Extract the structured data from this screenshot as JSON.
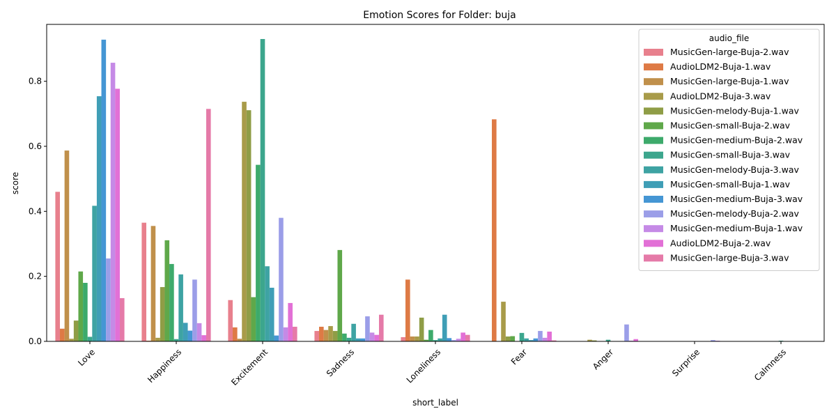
{
  "chart_data": {
    "type": "bar",
    "title": "Emotion Scores for Folder: buja",
    "xlabel": "short_label",
    "ylabel": "score",
    "ylim": [
      0,
      0.975
    ],
    "yticks": [
      "0.0",
      "0.2",
      "0.4",
      "0.6",
      "0.8"
    ],
    "ytick_values": [
      0,
      0.2,
      0.4,
      0.6,
      0.8
    ],
    "grid": false,
    "legend_placement": "top-right",
    "legend_title": "audio_file",
    "categories": [
      "Love",
      "Happiness",
      "Excitement",
      "Sadness",
      "Loneliness",
      "Fear",
      "Anger",
      "Surprise",
      "Calmness"
    ],
    "series": [
      {
        "name": "MusicGen-large-Buja-2.wav",
        "color": "#e8808d",
        "values": [
          0.46,
          0.365,
          0.127,
          0.032,
          0.013,
          0.001,
          0.001,
          0.0,
          0.0
        ]
      },
      {
        "name": "AudioLDM2-Buja-1.wav",
        "color": "#de7a45",
        "values": [
          0.039,
          0.002,
          0.043,
          0.045,
          0.19,
          0.683,
          0.0,
          0.0,
          0.0
        ]
      },
      {
        "name": "MusicGen-large-Buja-1.wav",
        "color": "#c0904b",
        "values": [
          0.587,
          0.355,
          0.008,
          0.035,
          0.015,
          0.0,
          0.0,
          0.0,
          0.0
        ]
      },
      {
        "name": "AudioLDM2-Buja-3.wav",
        "color": "#a89b49",
        "values": [
          0.008,
          0.011,
          0.737,
          0.047,
          0.015,
          0.122,
          0.005,
          0.0,
          0.0
        ]
      },
      {
        "name": "MusicGen-melody-Buja-1.wav",
        "color": "#8f9d46",
        "values": [
          0.064,
          0.167,
          0.711,
          0.032,
          0.073,
          0.015,
          0.003,
          0.0,
          0.0
        ]
      },
      {
        "name": "MusicGen-small-Buja-2.wav",
        "color": "#5fa84a",
        "values": [
          0.215,
          0.311,
          0.136,
          0.281,
          0.005,
          0.016,
          0.001,
          0.0,
          0.0
        ]
      },
      {
        "name": "MusicGen-medium-Buja-2.wav",
        "color": "#3daa6b",
        "values": [
          0.18,
          0.238,
          0.543,
          0.024,
          0.035,
          0.001,
          0.001,
          0.0,
          0.0
        ]
      },
      {
        "name": "MusicGen-small-Buja-3.wav",
        "color": "#3ca68d",
        "values": [
          0.014,
          0.007,
          0.93,
          0.011,
          0.004,
          0.026,
          0.005,
          0.0,
          0.002
        ]
      },
      {
        "name": "MusicGen-melody-Buja-3.wav",
        "color": "#3ea3a3",
        "values": [
          0.417,
          0.206,
          0.231,
          0.054,
          0.009,
          0.009,
          0.0,
          0.0,
          0.0
        ]
      },
      {
        "name": "MusicGen-small-Buja-1.wav",
        "color": "#3f9eb6",
        "values": [
          0.754,
          0.057,
          0.165,
          0.009,
          0.082,
          0.004,
          0.0,
          0.0,
          0.0
        ]
      },
      {
        "name": "MusicGen-medium-Buja-3.wav",
        "color": "#4596d4",
        "values": [
          0.928,
          0.033,
          0.018,
          0.009,
          0.01,
          0.009,
          0.0,
          0.0,
          0.0
        ]
      },
      {
        "name": "MusicGen-melody-Buja-2.wav",
        "color": "#9b9ee8",
        "values": [
          0.255,
          0.19,
          0.38,
          0.077,
          0.004,
          0.032,
          0.052,
          0.004,
          0.0
        ]
      },
      {
        "name": "MusicGen-medium-Buja-1.wav",
        "color": "#c58ae6",
        "values": [
          0.857,
          0.056,
          0.043,
          0.027,
          0.008,
          0.011,
          0.002,
          0.002,
          0.0
        ]
      },
      {
        "name": "AudioLDM2-Buja-2.wav",
        "color": "#e270d6",
        "values": [
          0.777,
          0.019,
          0.118,
          0.02,
          0.027,
          0.03,
          0.007,
          0.0,
          0.0
        ]
      },
      {
        "name": "MusicGen-large-Buja-3.wav",
        "color": "#e57aa8",
        "values": [
          0.133,
          0.715,
          0.045,
          0.082,
          0.02,
          0.003,
          0.0,
          0.0,
          0.0
        ]
      }
    ]
  }
}
